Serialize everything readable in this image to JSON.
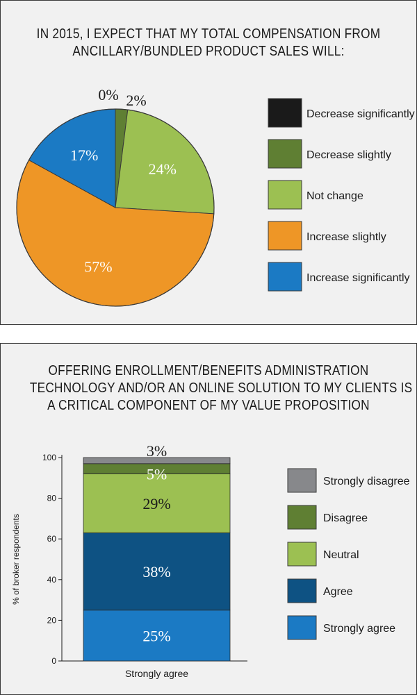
{
  "chart_data": [
    {
      "type": "pie",
      "title_lines": [
        "IN 2015, I EXPECT THAT MY TOTAL COMPENSATION FROM",
        "ANCILLARY/BUNDLED PRODUCT SALES WILL:"
      ],
      "categories": [
        "Decrease significantly",
        "Decrease slightly",
        "Not change",
        "Increase slightly",
        "Increase significantly"
      ],
      "values": [
        0,
        2,
        24,
        57,
        17
      ],
      "value_labels": [
        "0%",
        "2%",
        "24%",
        "57%",
        "17%"
      ],
      "colors": [
        "#1a1a1a",
        "#5f7f33",
        "#9cc052",
        "#ee9626",
        "#1b7ac4"
      ],
      "legend_position": "right"
    },
    {
      "type": "bar",
      "stacked": true,
      "title_lines": [
        "OFFERING ENROLLMENT/BENEFITS ADMINISTRATION",
        "TECHNOLOGY AND/OR AN ONLINE SOLUTION TO MY CLIENTS IS",
        "A CRITICAL COMPONENT OF MY VALUE PROPOSITION"
      ],
      "categories": [
        "Strongly agree"
      ],
      "ylabel": "% of broker respondents",
      "ylim": [
        0,
        100
      ],
      "yticks": [
        0,
        20,
        40,
        60,
        80,
        100
      ],
      "series": [
        {
          "name": "Strongly agree",
          "values": [
            25
          ],
          "label": "25%",
          "color": "#1b7ac4"
        },
        {
          "name": "Agree",
          "values": [
            38
          ],
          "label": "38%",
          "color": "#0e5283"
        },
        {
          "name": "Neutral",
          "values": [
            29
          ],
          "label": "29%",
          "color": "#9cc052"
        },
        {
          "name": "Disagree",
          "values": [
            5
          ],
          "label": "5%",
          "color": "#5f7f33"
        },
        {
          "name": "Strongly disagree",
          "values": [
            3
          ],
          "label": "3%",
          "color": "#87888b"
        }
      ],
      "legend_order": [
        "Strongly disagree",
        "Disagree",
        "Neutral",
        "Agree",
        "Strongly agree"
      ],
      "legend_position": "right"
    }
  ]
}
